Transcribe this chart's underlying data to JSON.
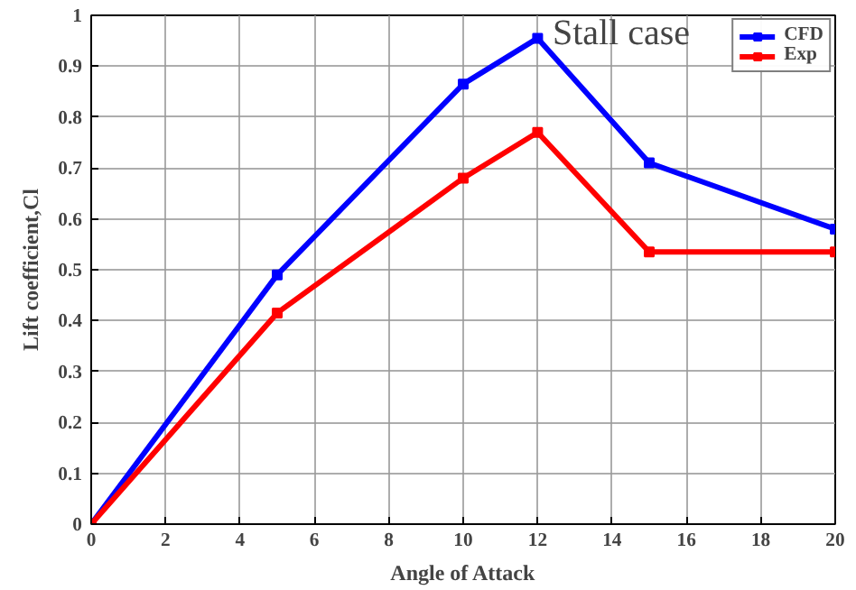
{
  "chart_data": {
    "type": "line",
    "xlabel": "Angle of Attack",
    "ylabel": "Lift coefficient,Cl",
    "annotations": [
      "Stall case"
    ],
    "x": [
      0,
      5,
      10,
      12,
      15,
      20
    ],
    "series": [
      {
        "name": "CFD",
        "color": "#0000ff",
        "values": [
          0,
          0.49,
          0.865,
          0.955,
          0.71,
          0.58
        ]
      },
      {
        "name": "Exp",
        "color": "#ff0000",
        "values": [
          0,
          0.415,
          0.68,
          0.77,
          0.535,
          0.535
        ]
      }
    ],
    "xlim": [
      0,
      20
    ],
    "xticks": [
      0,
      2,
      4,
      6,
      8,
      10,
      12,
      14,
      16,
      18,
      20
    ],
    "ylim": [
      0,
      1
    ],
    "yticks": [
      0,
      0.1,
      0.2,
      0.3,
      0.4,
      0.5,
      0.6,
      0.7,
      0.8,
      0.9,
      1
    ],
    "grid": true,
    "legend": "top right",
    "marker": "square",
    "line_style": "solid"
  }
}
